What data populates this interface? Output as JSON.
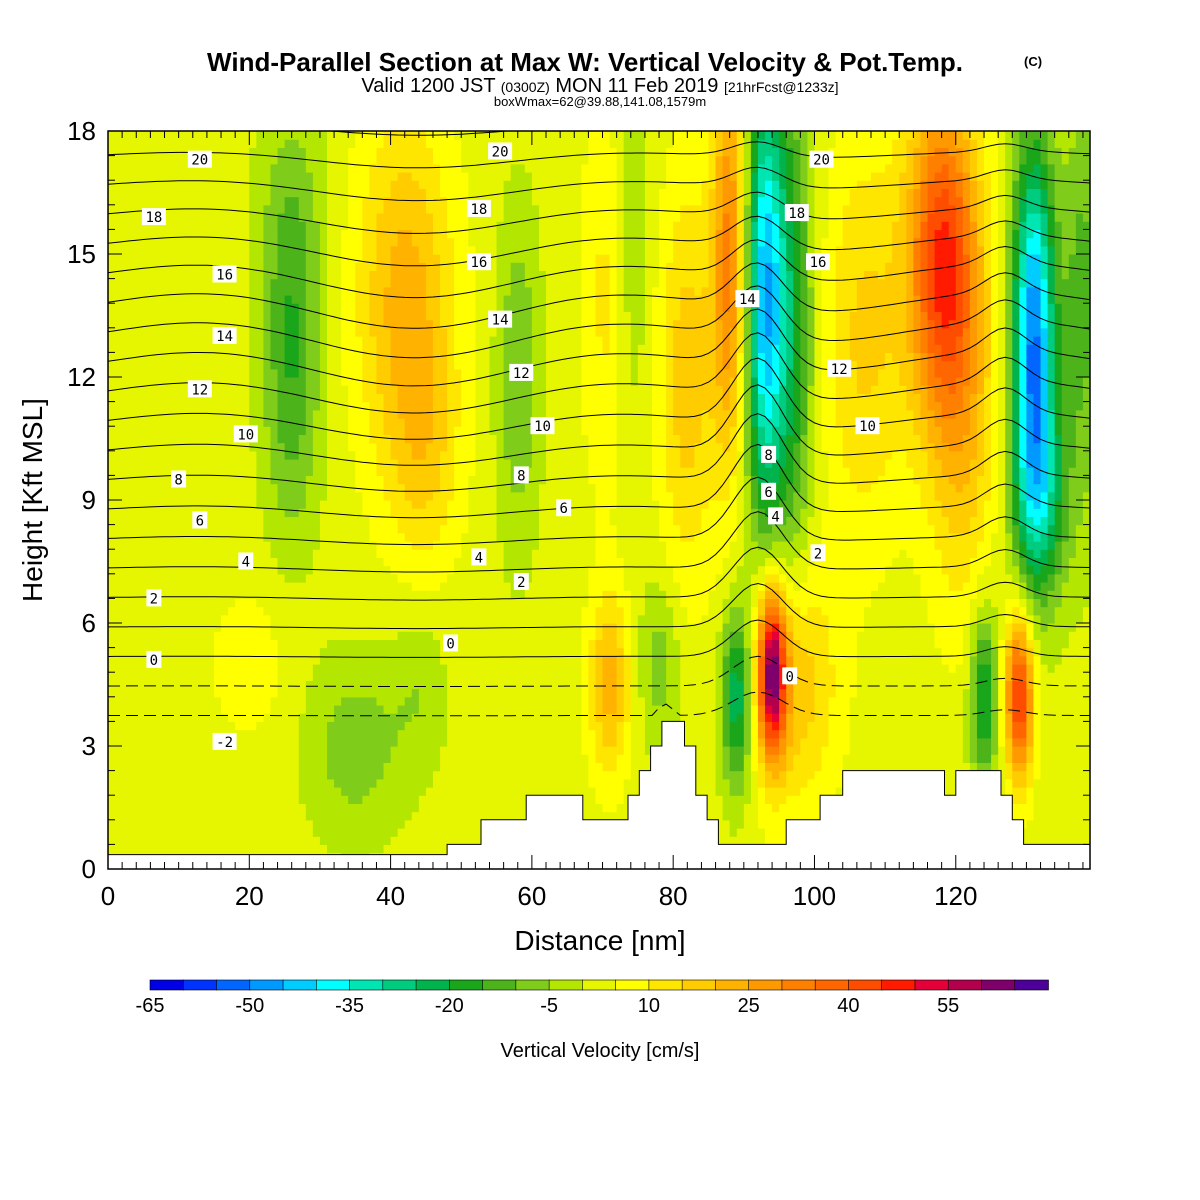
{
  "header": {
    "title": "Wind-Parallel Section at Max W: Vertical Velocity & Pot.Temp.",
    "title_mark": "(C)",
    "valid_prefix": "Valid 1200 JST",
    "valid_utc": "(0300Z)",
    "valid_date": "MON 11 Feb 2019",
    "forecast": "[21hrFcst@1233z]",
    "box_info": "boxWmax=62@39.88,141.08,1579m"
  },
  "chart_data": {
    "type": "heatmap",
    "xlabel": "Distance [nm]",
    "ylabel": "Height [Kft MSL]",
    "xlim": [
      0,
      139
    ],
    "ylim": [
      0,
      18
    ],
    "x_ticks": [
      "0",
      "20",
      "40",
      "60",
      "80",
      "100",
      "120"
    ],
    "x_tick_values": [
      0,
      20,
      40,
      60,
      80,
      100,
      120
    ],
    "y_ticks": [
      "0",
      "3",
      "6",
      "9",
      "12",
      "15",
      "18"
    ],
    "y_tick_values": [
      0,
      3,
      6,
      9,
      12,
      15,
      18
    ],
    "colorbar": {
      "title": "Vertical Velocity [cm/s]",
      "labels": [
        "-65",
        "-50",
        "-35",
        "-20",
        "-5",
        "10",
        "25",
        "40",
        "55"
      ],
      "label_values": [
        -65,
        -50,
        -35,
        -20,
        -5,
        10,
        25,
        40,
        55
      ],
      "min": -65,
      "max": 65,
      "step": 5,
      "colors": [
        "#0000e6",
        "#0033ff",
        "#0066ff",
        "#0099ff",
        "#00ccff",
        "#00ffff",
        "#00e6b3",
        "#00cc80",
        "#00b34d",
        "#1aa61a",
        "#4db31a",
        "#80cc1a",
        "#b3e600",
        "#e6f500",
        "#ffff00",
        "#ffe600",
        "#ffcc00",
        "#ffb300",
        "#ff9900",
        "#ff8000",
        "#ff6600",
        "#ff4d00",
        "#ff1a00",
        "#e6003a",
        "#b3004d",
        "#80006b",
        "#4d0099"
      ]
    },
    "theta_labels": [
      {
        "text": "20",
        "x": 13,
        "y": 17.3
      },
      {
        "text": "20",
        "x": 55.5,
        "y": 17.5
      },
      {
        "text": "20",
        "x": 101,
        "y": 17.3
      },
      {
        "text": "18",
        "x": 6.5,
        "y": 15.9
      },
      {
        "text": "18",
        "x": 52.5,
        "y": 16.1
      },
      {
        "text": "18",
        "x": 97.5,
        "y": 16.0
      },
      {
        "text": "16",
        "x": 16.5,
        "y": 14.5
      },
      {
        "text": "16",
        "x": 52.5,
        "y": 14.8
      },
      {
        "text": "16",
        "x": 100.5,
        "y": 14.8
      },
      {
        "text": "14",
        "x": 16.5,
        "y": 13.0
      },
      {
        "text": "14",
        "x": 55.5,
        "y": 13.4
      },
      {
        "text": "14",
        "x": 90.5,
        "y": 13.9
      },
      {
        "text": "12",
        "x": 13,
        "y": 11.7
      },
      {
        "text": "12",
        "x": 58.5,
        "y": 12.1
      },
      {
        "text": "12",
        "x": 103.5,
        "y": 12.2
      },
      {
        "text": "10",
        "x": 19.5,
        "y": 10.6
      },
      {
        "text": "10",
        "x": 61.5,
        "y": 10.8
      },
      {
        "text": "10",
        "x": 107.5,
        "y": 10.8
      },
      {
        "text": "8",
        "x": 10,
        "y": 9.5
      },
      {
        "text": "8",
        "x": 58.5,
        "y": 9.6
      },
      {
        "text": "8",
        "x": 93.5,
        "y": 10.1
      },
      {
        "text": "6",
        "x": 13,
        "y": 8.5
      },
      {
        "text": "6",
        "x": 64.5,
        "y": 8.8
      },
      {
        "text": "6",
        "x": 93.5,
        "y": 9.2
      },
      {
        "text": "4",
        "x": 19.5,
        "y": 7.5
      },
      {
        "text": "4",
        "x": 52.5,
        "y": 7.6
      },
      {
        "text": "4",
        "x": 94.5,
        "y": 8.6
      },
      {
        "text": "2",
        "x": 6.5,
        "y": 6.6
      },
      {
        "text": "2",
        "x": 58.5,
        "y": 7.0
      },
      {
        "text": "2",
        "x": 100.5,
        "y": 7.7
      },
      {
        "text": "0",
        "x": 6.5,
        "y": 5.1
      },
      {
        "text": "0",
        "x": 48.5,
        "y": 5.5
      },
      {
        "text": "0",
        "x": 96.5,
        "y": 4.7
      },
      {
        "text": "-2",
        "x": 16.5,
        "y": 3.1
      }
    ]
  }
}
